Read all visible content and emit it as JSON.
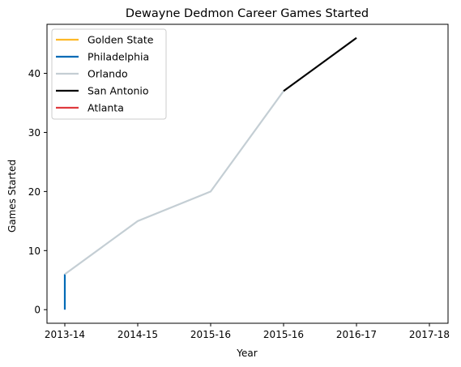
{
  "chart_data": {
    "type": "line",
    "title": "Dewayne Dedmon Career Games Started",
    "xlabel": "Year",
    "ylabel": "Games Started",
    "categories": [
      "2013-14",
      "2014-15",
      "2015-16",
      "2015-16",
      "2016-17",
      "2017-18"
    ],
    "ylim": [
      -2.3,
      48.3
    ],
    "yticks": [
      0,
      10,
      20,
      30,
      40
    ],
    "grid": false,
    "legend_position": "top-left",
    "series": [
      {
        "name": "Golden State",
        "color": "#FDB927",
        "points": []
      },
      {
        "name": "Philadelphia",
        "color": "#006BB6",
        "points": [
          [
            0,
            0
          ],
          [
            0,
            6
          ]
        ]
      },
      {
        "name": "Orlando",
        "color": "#C4CED4",
        "points": [
          [
            0,
            6
          ],
          [
            1,
            15
          ],
          [
            2,
            20
          ],
          [
            3,
            37
          ]
        ]
      },
      {
        "name": "San Antonio",
        "color": "#000000",
        "points": [
          [
            3,
            37
          ],
          [
            4,
            46
          ]
        ]
      },
      {
        "name": "Atlanta",
        "color": "#E03A3E",
        "points": []
      }
    ]
  }
}
